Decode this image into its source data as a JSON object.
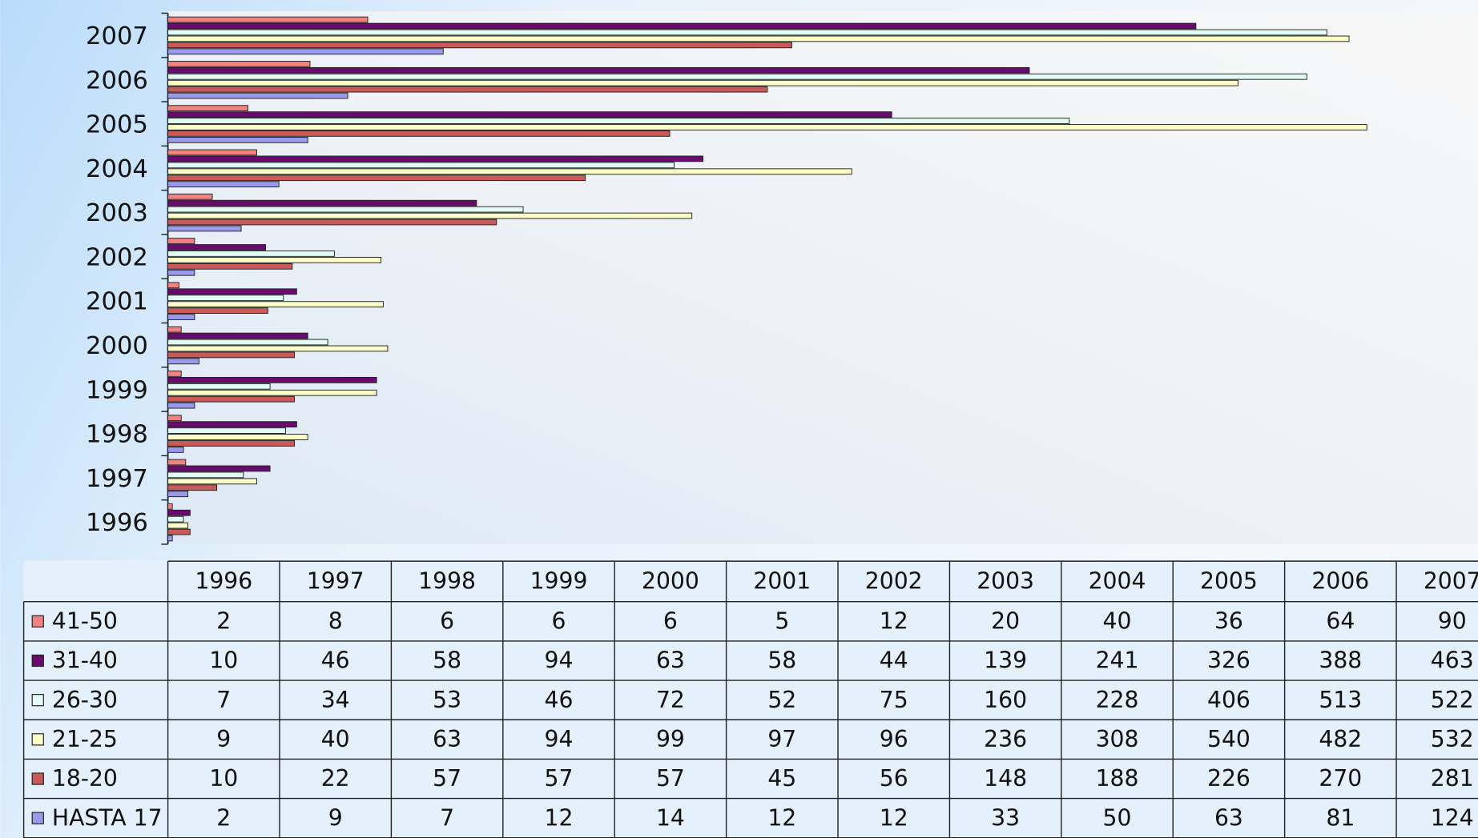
{
  "chart_data": {
    "type": "bar",
    "orientation": "horizontal",
    "categories": [
      "1996",
      "1997",
      "1998",
      "1999",
      "2000",
      "2001",
      "2002",
      "2003",
      "2004",
      "2005",
      "2006",
      "2007"
    ],
    "series": [
      {
        "name": "41-50",
        "color": "#f08282",
        "values": [
          2,
          8,
          6,
          6,
          6,
          5,
          12,
          20,
          40,
          36,
          64,
          90
        ]
      },
      {
        "name": "31-40",
        "color": "#6a0a6e",
        "values": [
          10,
          46,
          58,
          94,
          63,
          58,
          44,
          139,
          241,
          326,
          388,
          463
        ]
      },
      {
        "name": "26-30",
        "color": "#e2fbf4",
        "values": [
          7,
          34,
          53,
          46,
          72,
          52,
          75,
          160,
          228,
          406,
          513,
          522
        ]
      },
      {
        "name": "21-25",
        "color": "#fdfdc8",
        "values": [
          9,
          40,
          63,
          94,
          99,
          97,
          96,
          236,
          308,
          540,
          482,
          532
        ]
      },
      {
        "name": "18-20",
        "color": "#c85a5a",
        "values": [
          10,
          22,
          57,
          57,
          57,
          45,
          56,
          148,
          188,
          226,
          270,
          281
        ]
      },
      {
        "name": "HASTA 17",
        "color": "#9a9aec",
        "values": [
          2,
          9,
          7,
          12,
          14,
          12,
          12,
          33,
          50,
          63,
          81,
          124
        ]
      }
    ],
    "xlim": [
      0,
      590
    ]
  }
}
